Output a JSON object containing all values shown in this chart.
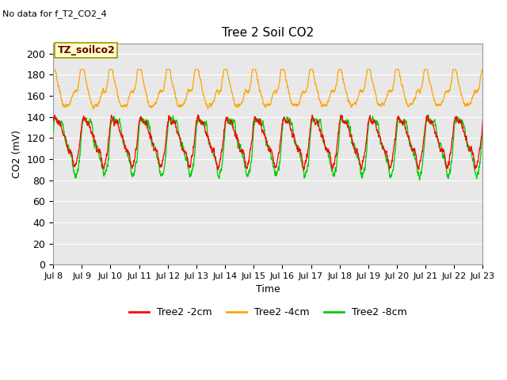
{
  "title": "Tree 2 Soil CO2",
  "no_data_text": "No data for f_T2_CO2_4",
  "xlabel": "Time",
  "ylabel": "CO2 (mV)",
  "ylim": [
    0,
    210
  ],
  "yticks": [
    0,
    20,
    40,
    60,
    80,
    100,
    120,
    140,
    160,
    180,
    200
  ],
  "x_start_day": 8,
  "x_end_day": 23,
  "x_tick_days": [
    8,
    9,
    10,
    11,
    12,
    13,
    14,
    15,
    16,
    17,
    18,
    19,
    20,
    21,
    22,
    23
  ],
  "x_tick_labels": [
    "Jul 8",
    "Jul 9",
    "Jul 10",
    "Jul 11",
    "Jul 12",
    "Jul 13",
    "Jul 14",
    "Jul 15",
    "Jul 16",
    "Jul 17",
    "Jul 18",
    "Jul 19",
    "Jul 20",
    "Jul 21",
    "Jul 22",
    "Jul 23"
  ],
  "colors": {
    "red": "#ff0000",
    "orange": "#ffa500",
    "green": "#00cc00",
    "bg": "#e8e8e8",
    "legend_box_face": "#ffffcc",
    "legend_box_edge": "#999900"
  },
  "legend_labels": [
    "Tree2 -2cm",
    "Tree2 -4cm",
    "Tree2 -8cm"
  ],
  "annotation_box": "TZ_soilco2",
  "n_points": 3000
}
